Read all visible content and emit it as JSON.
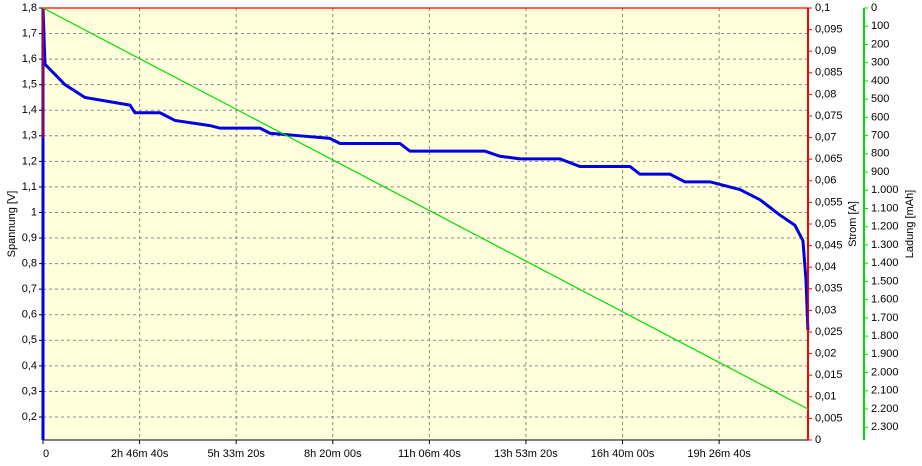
{
  "chart_data": {
    "type": "line",
    "xlim": [
      0,
      79200
    ],
    "xticks": [
      {
        "value": 0,
        "label": "0"
      },
      {
        "value": 10000,
        "label": "2h 46m 40s"
      },
      {
        "value": 20000,
        "label": "5h 33m 20s"
      },
      {
        "value": 30000,
        "label": "8h 20m 00s"
      },
      {
        "value": 40000,
        "label": "11h 06m 40s"
      },
      {
        "value": 50000,
        "label": "13h 53m 20s"
      },
      {
        "value": 60000,
        "label": "16h 40m 00s"
      },
      {
        "value": 70000,
        "label": "19h 26m 40s"
      }
    ],
    "ylabel": "Spannung [V]",
    "ylim": [
      0.11,
      1.8
    ],
    "yticks": [
      {
        "value": 0.2,
        "label": "0,2"
      },
      {
        "value": 0.3,
        "label": "0,3"
      },
      {
        "value": 0.4,
        "label": "0,4"
      },
      {
        "value": 0.5,
        "label": "0,5"
      },
      {
        "value": 0.6,
        "label": "0,6"
      },
      {
        "value": 0.7,
        "label": "0,7"
      },
      {
        "value": 0.8,
        "label": "0,8"
      },
      {
        "value": 0.9,
        "label": "0,9"
      },
      1,
      {
        "value": 1.1,
        "label": "1,1"
      },
      {
        "value": 1.2,
        "label": "1,2"
      },
      {
        "value": 1.3,
        "label": "1,3"
      },
      {
        "value": 1.4,
        "label": "1,4"
      },
      {
        "value": 1.5,
        "label": "1,5"
      },
      {
        "value": 1.6,
        "label": "1,6"
      },
      {
        "value": 1.7,
        "label": "1,7"
      },
      {
        "value": 1.8,
        "label": "1,8"
      }
    ],
    "y2label": "Strom [A]",
    "y2lim": [
      0,
      0.1
    ],
    "y2ticks": [
      0,
      {
        "value": 0.005,
        "label": "0,005"
      },
      {
        "value": 0.01,
        "label": "0,01"
      },
      {
        "value": 0.015,
        "label": "0,015"
      },
      {
        "value": 0.02,
        "label": "0,02"
      },
      {
        "value": 0.025,
        "label": "0,025"
      },
      {
        "value": 0.03,
        "label": "0,03"
      },
      {
        "value": 0.035,
        "label": "0,035"
      },
      {
        "value": 0.04,
        "label": "0,04"
      },
      {
        "value": 0.045,
        "label": "0,045"
      },
      {
        "value": 0.05,
        "label": "0,05"
      },
      {
        "value": 0.055,
        "label": "0,055"
      },
      {
        "value": 0.06,
        "label": "0,06"
      },
      {
        "value": 0.065,
        "label": "0,065"
      },
      {
        "value": 0.07,
        "label": "0,07"
      },
      {
        "value": 0.075,
        "label": "0,075"
      },
      {
        "value": 0.08,
        "label": "0,08"
      },
      {
        "value": 0.085,
        "label": "0,085"
      },
      {
        "value": 0.09,
        "label": "0,09"
      },
      {
        "value": 0.095,
        "label": "0,095"
      },
      {
        "value": 0.1,
        "label": "0,1"
      }
    ],
    "y3label": "Ladung [mAh]",
    "y3lim": [
      0,
      2370
    ],
    "y3_inverted": true,
    "y3ticks": [
      0,
      100,
      200,
      300,
      400,
      500,
      600,
      700,
      800,
      900,
      {
        "value": 1000,
        "label": "1.000"
      },
      {
        "value": 1100,
        "label": "1.100"
      },
      {
        "value": 1200,
        "label": "1.200"
      },
      {
        "value": 1300,
        "label": "1.300"
      },
      {
        "value": 1400,
        "label": "1.400"
      },
      {
        "value": 1500,
        "label": "1.500"
      },
      {
        "value": 1600,
        "label": "1.600"
      },
      {
        "value": 1700,
        "label": "1.700"
      },
      {
        "value": 1800,
        "label": "1.800"
      },
      {
        "value": 1900,
        "label": "1.900"
      },
      {
        "value": 2000,
        "label": "2.000"
      },
      {
        "value": 2100,
        "label": "2.100"
      },
      {
        "value": 2200,
        "label": "2.200"
      },
      {
        "value": 2300,
        "label": "2.300"
      }
    ],
    "grid": true,
    "series": [
      {
        "color": "#0000e0",
        "axis": "y",
        "x": [
          0,
          0,
          207,
          1242,
          2277,
          4348,
          9006,
          9524,
          12112,
          13665,
          17288,
          18323,
          22464,
          23499,
          26605,
          29710,
          30745,
          36957,
          37992,
          45756,
          47308,
          49379,
          53520,
          55590,
          60766,
          61801,
          64907,
          66460,
          69048,
          72153,
          74224,
          76294,
          77847,
          78675,
          78986,
          79193
        ],
        "values": [
          0.11,
          1.8,
          1.58,
          1.54,
          1.5,
          1.45,
          1.42,
          1.39,
          1.39,
          1.36,
          1.34,
          1.33,
          1.33,
          1.31,
          1.3,
          1.29,
          1.27,
          1.27,
          1.24,
          1.24,
          1.22,
          1.21,
          1.21,
          1.18,
          1.18,
          1.15,
          1.15,
          1.12,
          1.12,
          1.09,
          1.05,
          0.99,
          0.95,
          0.89,
          0.74,
          0.54
        ]
      },
      {
        "color": "#ff0000",
        "axis": "y2",
        "x": [
          0,
          0,
          79200,
          79200
        ],
        "values": [
          0.07,
          0.1,
          0.1,
          0.023
        ]
      },
      {
        "color": "#00dd00",
        "axis": "y3",
        "x": [
          0,
          79200
        ],
        "values": [
          0,
          2200
        ]
      }
    ]
  }
}
